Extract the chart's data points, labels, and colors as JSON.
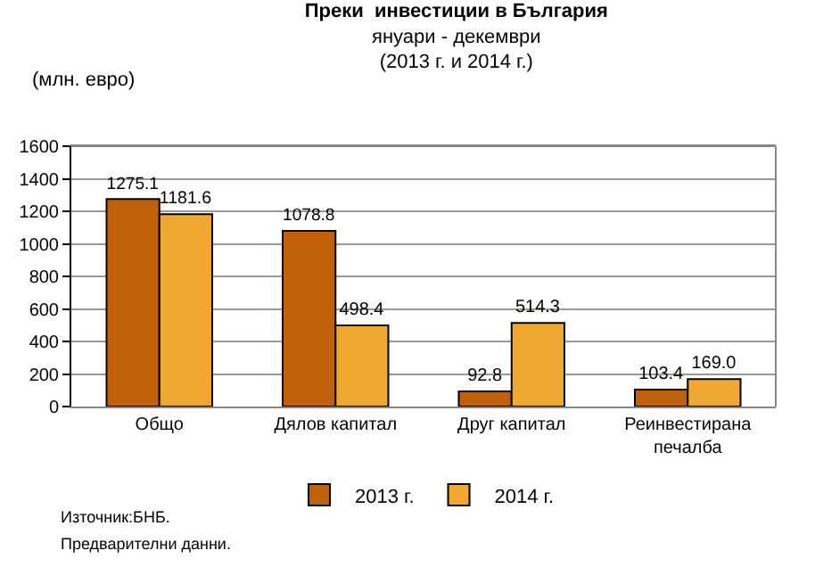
{
  "chart_data": {
    "type": "bar",
    "title": "Преки  инвестиции в България",
    "subtitle": "януари - декември\n(2013 г. и 2014 г.)",
    "ylabel": "(млн. евро)",
    "categories": [
      "Общо",
      "Дялов капитал",
      "Друг капитал",
      "Реинвестирана\nпечалба"
    ],
    "series": [
      {
        "name": "2013 г.",
        "color": "#c0600a",
        "values": [
          1275.1,
          1078.8,
          92.8,
          103.4
        ]
      },
      {
        "name": "2014 г.",
        "color": "#f0a830",
        "values": [
          1181.6,
          498.4,
          514.3,
          169
        ],
        "value_labels": [
          "1181.6",
          "498.4",
          "514.3",
          "169.0"
        ]
      }
    ],
    "ylim": [
      0,
      1600
    ],
    "yticks": [
      0,
      200,
      400,
      600,
      800,
      1000,
      1200,
      1400,
      1600
    ],
    "grid": "y",
    "legend": "bottom",
    "data_labels": true,
    "annotations": [
      "Източник:БНБ.",
      "Предварителни данни."
    ]
  }
}
